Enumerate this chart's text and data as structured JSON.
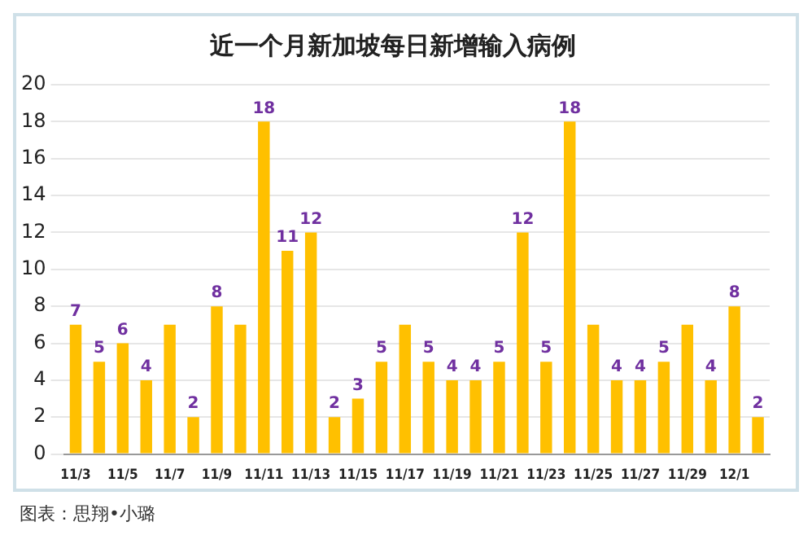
{
  "chart_data": {
    "type": "bar",
    "title": "近一个月新加坡每日新增输入病例",
    "categories": [
      "11/3",
      null,
      "11/5",
      null,
      "11/7",
      null,
      "11/9",
      null,
      "11/11",
      null,
      "11/13",
      null,
      "11/15",
      null,
      "11/17",
      null,
      "11/19",
      null,
      "11/21",
      null,
      "11/23",
      null,
      "11/25",
      null,
      "11/27",
      null,
      "11/29",
      null,
      "12/1",
      null
    ],
    "values": [
      7,
      5,
      6,
      4,
      7,
      2,
      8,
      7,
      18,
      11,
      12,
      2,
      3,
      5,
      7,
      5,
      4,
      4,
      5,
      12,
      5,
      18,
      7,
      4,
      4,
      5,
      7,
      4,
      8,
      2
    ],
    "value_labels": [
      "7",
      "5",
      "6",
      "4",
      null,
      "2",
      "8",
      null,
      "18",
      "11",
      "12",
      "2",
      "3",
      "5",
      null,
      "5",
      "4",
      "4",
      "5",
      "12",
      "5",
      "18",
      null,
      "4",
      "4",
      "5",
      null,
      "4",
      "8",
      "2"
    ],
    "color": "#ffc000",
    "ylim": [
      0,
      20
    ],
    "yticks": [
      0,
      2,
      4,
      6,
      8,
      10,
      12,
      14,
      16,
      18,
      20
    ],
    "grid": "y",
    "annotations": [
      "图表：思翔•小璐"
    ]
  }
}
